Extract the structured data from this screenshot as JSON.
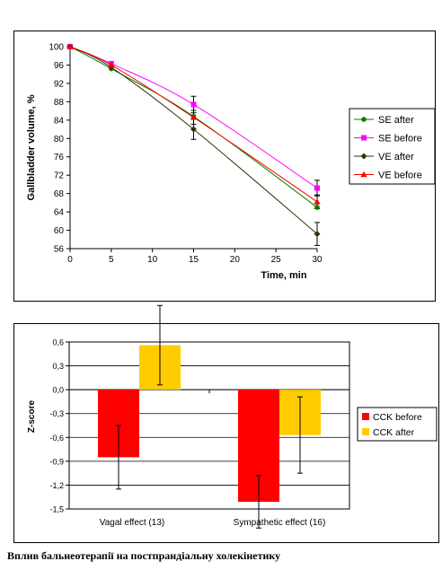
{
  "chart_data": [
    {
      "type": "line",
      "xlabel": "Time, min",
      "ylabel": "Gallbladder volume, %",
      "xlim": [
        0,
        30
      ],
      "ylim": [
        56,
        100
      ],
      "x_ticks": [
        "0",
        "5",
        "10",
        "15",
        "20",
        "25",
        "30"
      ],
      "y_ticks": [
        "56",
        "60",
        "64",
        "68",
        "72",
        "76",
        "80",
        "84",
        "88",
        "92",
        "96",
        "100"
      ],
      "grid": false,
      "legend_position": "right",
      "series": [
        {
          "name": "SE after",
          "color": "#008000",
          "marker": "circle",
          "x": [
            0,
            5,
            15,
            30
          ],
          "y": [
            100,
            95.2,
            84.8,
            65
          ]
        },
        {
          "name": "SE before",
          "color": "#ff00ff",
          "marker": "square",
          "x": [
            0,
            5,
            15,
            30
          ],
          "y": [
            100,
            96.3,
            87.4,
            69.2
          ],
          "err": [
            0,
            0,
            1.8,
            1.7
          ]
        },
        {
          "name": "VE after",
          "color": "#333300",
          "marker": "diamond",
          "x": [
            0,
            5,
            15,
            30
          ],
          "y": [
            100,
            95.5,
            82,
            59.2
          ],
          "err": [
            0,
            0,
            2.2,
            2.5
          ]
        },
        {
          "name": "VE before",
          "color": "#ff0000",
          "marker": "triangle",
          "x": [
            0,
            5,
            15,
            30
          ],
          "y": [
            100,
            96,
            84.6,
            66.2
          ],
          "err": [
            0,
            0,
            1.5,
            1.5
          ]
        }
      ]
    },
    {
      "type": "bar",
      "ylabel": "Z-score",
      "categories": [
        "Vagal effect (13)",
        "Sympathetic effect (16)"
      ],
      "ylim": [
        -1.5,
        0.6
      ],
      "y_ticks": [
        "0,6",
        "0,3",
        "0,0",
        "-0,3",
        "-0,6",
        "-0,9",
        "-1,2",
        "-1,5"
      ],
      "grid": true,
      "legend_position": "right",
      "series": [
        {
          "name": "CCK before",
          "color": "#ff0000",
          "values": [
            -0.85,
            -1.41
          ],
          "err": [
            0.4,
            0.33
          ]
        },
        {
          "name": "CCK after",
          "color": "#ffcc00",
          "values": [
            0.56,
            -0.57
          ],
          "err": [
            0.5,
            0.48
          ]
        }
      ]
    }
  ],
  "caption": "Вплив бальнеотерапії на постпрандіальну холекінетику"
}
